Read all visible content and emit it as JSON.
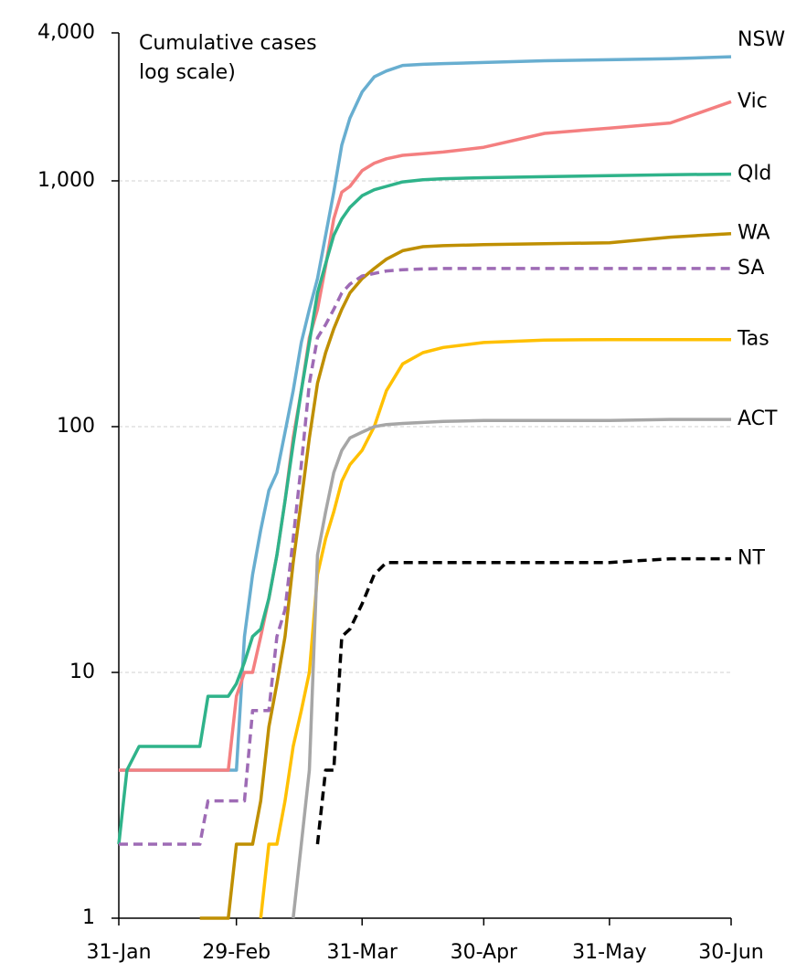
{
  "chart_data": {
    "type": "line",
    "ylabel": [
      "Cumulative cases",
      "log scale)"
    ],
    "log_y": true,
    "grid": true,
    "ylim": [
      1,
      4000
    ],
    "yticks": [
      1,
      10,
      100,
      {
        "value": 1000,
        "label": "1,000"
      },
      {
        "value": 4000,
        "label": "4,000"
      }
    ],
    "xlim": [
      "31-Jan",
      "30-Jun"
    ],
    "xticks": [
      "31-Jan",
      "29-Feb",
      "31-Mar",
      "30-Apr",
      "31-May",
      "30-Jun"
    ],
    "x": [
      "31-Jan",
      "2-Feb",
      "5-Feb",
      "20-Feb",
      "22-Feb",
      "27-Feb",
      "29-Feb",
      "2-Mar",
      "4-Mar",
      "6-Mar",
      "8-Mar",
      "10-Mar",
      "12-Mar",
      "14-Mar",
      "16-Mar",
      "18-Mar",
      "20-Mar",
      "22-Mar",
      "24-Mar",
      "26-Mar",
      "28-Mar",
      "31-Mar",
      "3-Apr",
      "6-Apr",
      "10-Apr",
      "15-Apr",
      "20-Apr",
      "30-Apr",
      "15-May",
      "31-May",
      "15-Jun",
      "30-Jun"
    ],
    "series": [
      {
        "name": "NSW",
        "color": "#68aed0",
        "dashed": false,
        "values": [
          4,
          4,
          4,
          4,
          4,
          4,
          4,
          14,
          25,
          38,
          55,
          65,
          95,
          140,
          220,
          300,
          400,
          600,
          900,
          1400,
          1800,
          2300,
          2650,
          2800,
          2950,
          2980,
          3000,
          3030,
          3080,
          3110,
          3140,
          3200
        ]
      },
      {
        "name": "Vic",
        "color": "#f47f80",
        "dashed": false,
        "values": [
          4,
          4,
          4,
          4,
          4,
          4,
          8,
          10,
          10,
          14,
          20,
          30,
          50,
          90,
          140,
          230,
          300,
          450,
          700,
          900,
          950,
          1100,
          1180,
          1230,
          1270,
          1290,
          1310,
          1370,
          1560,
          1640,
          1720,
          2100
        ]
      },
      {
        "name": "Qld",
        "color": "#2fb38a",
        "dashed": false,
        "values": [
          2,
          4,
          5,
          5,
          8,
          8,
          9,
          11,
          14,
          15,
          20,
          30,
          50,
          85,
          140,
          220,
          350,
          460,
          600,
          700,
          780,
          870,
          920,
          950,
          990,
          1010,
          1020,
          1030,
          1040,
          1050,
          1060,
          1065
        ]
      },
      {
        "name": "WA",
        "color": "#bf8f00",
        "dashed": false,
        "values": [
          null,
          null,
          null,
          1,
          1,
          1,
          2,
          2,
          2,
          3,
          6,
          9,
          14,
          28,
          50,
          90,
          150,
          200,
          250,
          300,
          350,
          400,
          440,
          480,
          520,
          540,
          545,
          550,
          555,
          560,
          590,
          610
        ]
      },
      {
        "name": "SA",
        "color": "#9e6bb5",
        "dashed": true,
        "values": [
          2,
          2,
          2,
          2,
          3,
          3,
          3,
          3,
          7,
          7,
          7,
          14,
          18,
          35,
          70,
          150,
          230,
          260,
          300,
          350,
          380,
          410,
          420,
          430,
          435,
          438,
          440,
          440,
          440,
          440,
          440,
          440
        ]
      },
      {
        "name": "Tas",
        "color": "#ffc000",
        "dashed": false,
        "values": [
          null,
          null,
          null,
          null,
          null,
          null,
          null,
          null,
          null,
          1,
          2,
          2,
          3,
          5,
          7,
          10,
          25,
          35,
          45,
          60,
          70,
          80,
          100,
          140,
          180,
          200,
          210,
          220,
          225,
          226,
          226,
          226
        ]
      },
      {
        "name": "ACT",
        "color": "#a6a6a6",
        "dashed": false,
        "values": [
          null,
          null,
          null,
          null,
          null,
          null,
          null,
          null,
          null,
          null,
          null,
          null,
          null,
          1,
          2,
          4,
          30,
          45,
          65,
          80,
          90,
          95,
          100,
          102,
          103,
          104,
          105,
          106,
          106,
          106,
          107,
          107
        ]
      },
      {
        "name": "NT",
        "color": "#000000",
        "dashed": true,
        "values": [
          null,
          null,
          null,
          null,
          null,
          null,
          null,
          null,
          null,
          null,
          null,
          null,
          null,
          null,
          null,
          null,
          2,
          4,
          4,
          14,
          15,
          19,
          25,
          28,
          28,
          28,
          28,
          28,
          28,
          28,
          29,
          29
        ]
      }
    ]
  }
}
